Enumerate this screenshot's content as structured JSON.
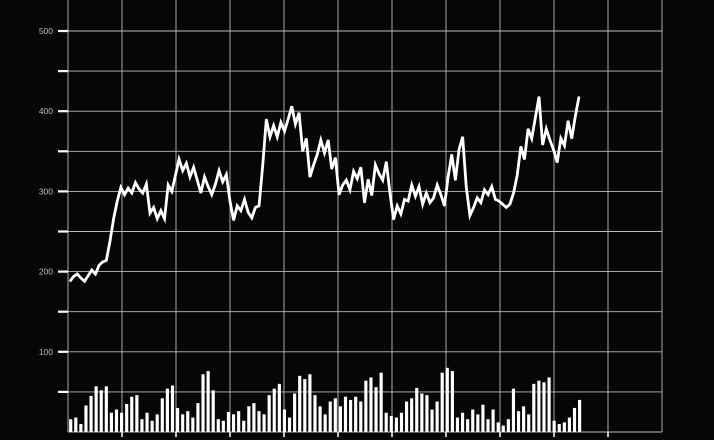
{
  "chart_data": {
    "type": "line",
    "title": "",
    "xlabel": "",
    "ylabel": "",
    "ylim": [
      0,
      500
    ],
    "y_tick_labels": [
      "100",
      "200",
      "300",
      "400",
      "500"
    ],
    "grid": true,
    "background": "#060606",
    "line_color": "#ffffff",
    "grid_color": "#bcbcbc",
    "series": [
      {
        "type": "line",
        "values": [
          188,
          194,
          197,
          192,
          188,
          195,
          202,
          197,
          208,
          212,
          214,
          238,
          266,
          288,
          305,
          296,
          304,
          298,
          311,
          303,
          298,
          309,
          273,
          280,
          266,
          276,
          266,
          308,
          300,
          320,
          340,
          326,
          335,
          318,
          330,
          314,
          298,
          318,
          306,
          296,
          309,
          326,
          312,
          321,
          288,
          264,
          282,
          276,
          290,
          274,
          267,
          280,
          282,
          332,
          390,
          368,
          382,
          368,
          386,
          375,
          390,
          406,
          384,
          398,
          350,
          366,
          318,
          333,
          346,
          364,
          348,
          364,
          328,
          342,
          296,
          308,
          314,
          302,
          325,
          316,
          330,
          286,
          315,
          295,
          333,
          322,
          314,
          337,
          298,
          265,
          282,
          272,
          290,
          288,
          308,
          294,
          306,
          284,
          298,
          286,
          292,
          308,
          296,
          282,
          318,
          346,
          314,
          352,
          368,
          305,
          270,
          280,
          292,
          286,
          302,
          296,
          306,
          290,
          288,
          284,
          280,
          284,
          298,
          320,
          356,
          340,
          378,
          366,
          392,
          418,
          358,
          378,
          364,
          352,
          336,
          366,
          357,
          388,
          366,
          394,
          418
        ]
      },
      {
        "type": "bar",
        "values": [
          16,
          18,
          10,
          33,
          45,
          57,
          52,
          57,
          24,
          28,
          24,
          35,
          44,
          46,
          16,
          24,
          14,
          22,
          42,
          54,
          58,
          30,
          22,
          26,
          18,
          36,
          72,
          76,
          52,
          16,
          14,
          25,
          22,
          26,
          14,
          32,
          36,
          26,
          22,
          46,
          54,
          60,
          28,
          18,
          48,
          70,
          66,
          72,
          46,
          32,
          22,
          38,
          42,
          32,
          44,
          40,
          44,
          38,
          64,
          68,
          56,
          74,
          24,
          20,
          18,
          24,
          38,
          42,
          55,
          48,
          46,
          28,
          38,
          74,
          80,
          76,
          18,
          24,
          16,
          28,
          22,
          34,
          16,
          28,
          12,
          8,
          16,
          54,
          26,
          32,
          22,
          60,
          64,
          62,
          68,
          14,
          10,
          12,
          18,
          30,
          40
        ]
      }
    ]
  }
}
